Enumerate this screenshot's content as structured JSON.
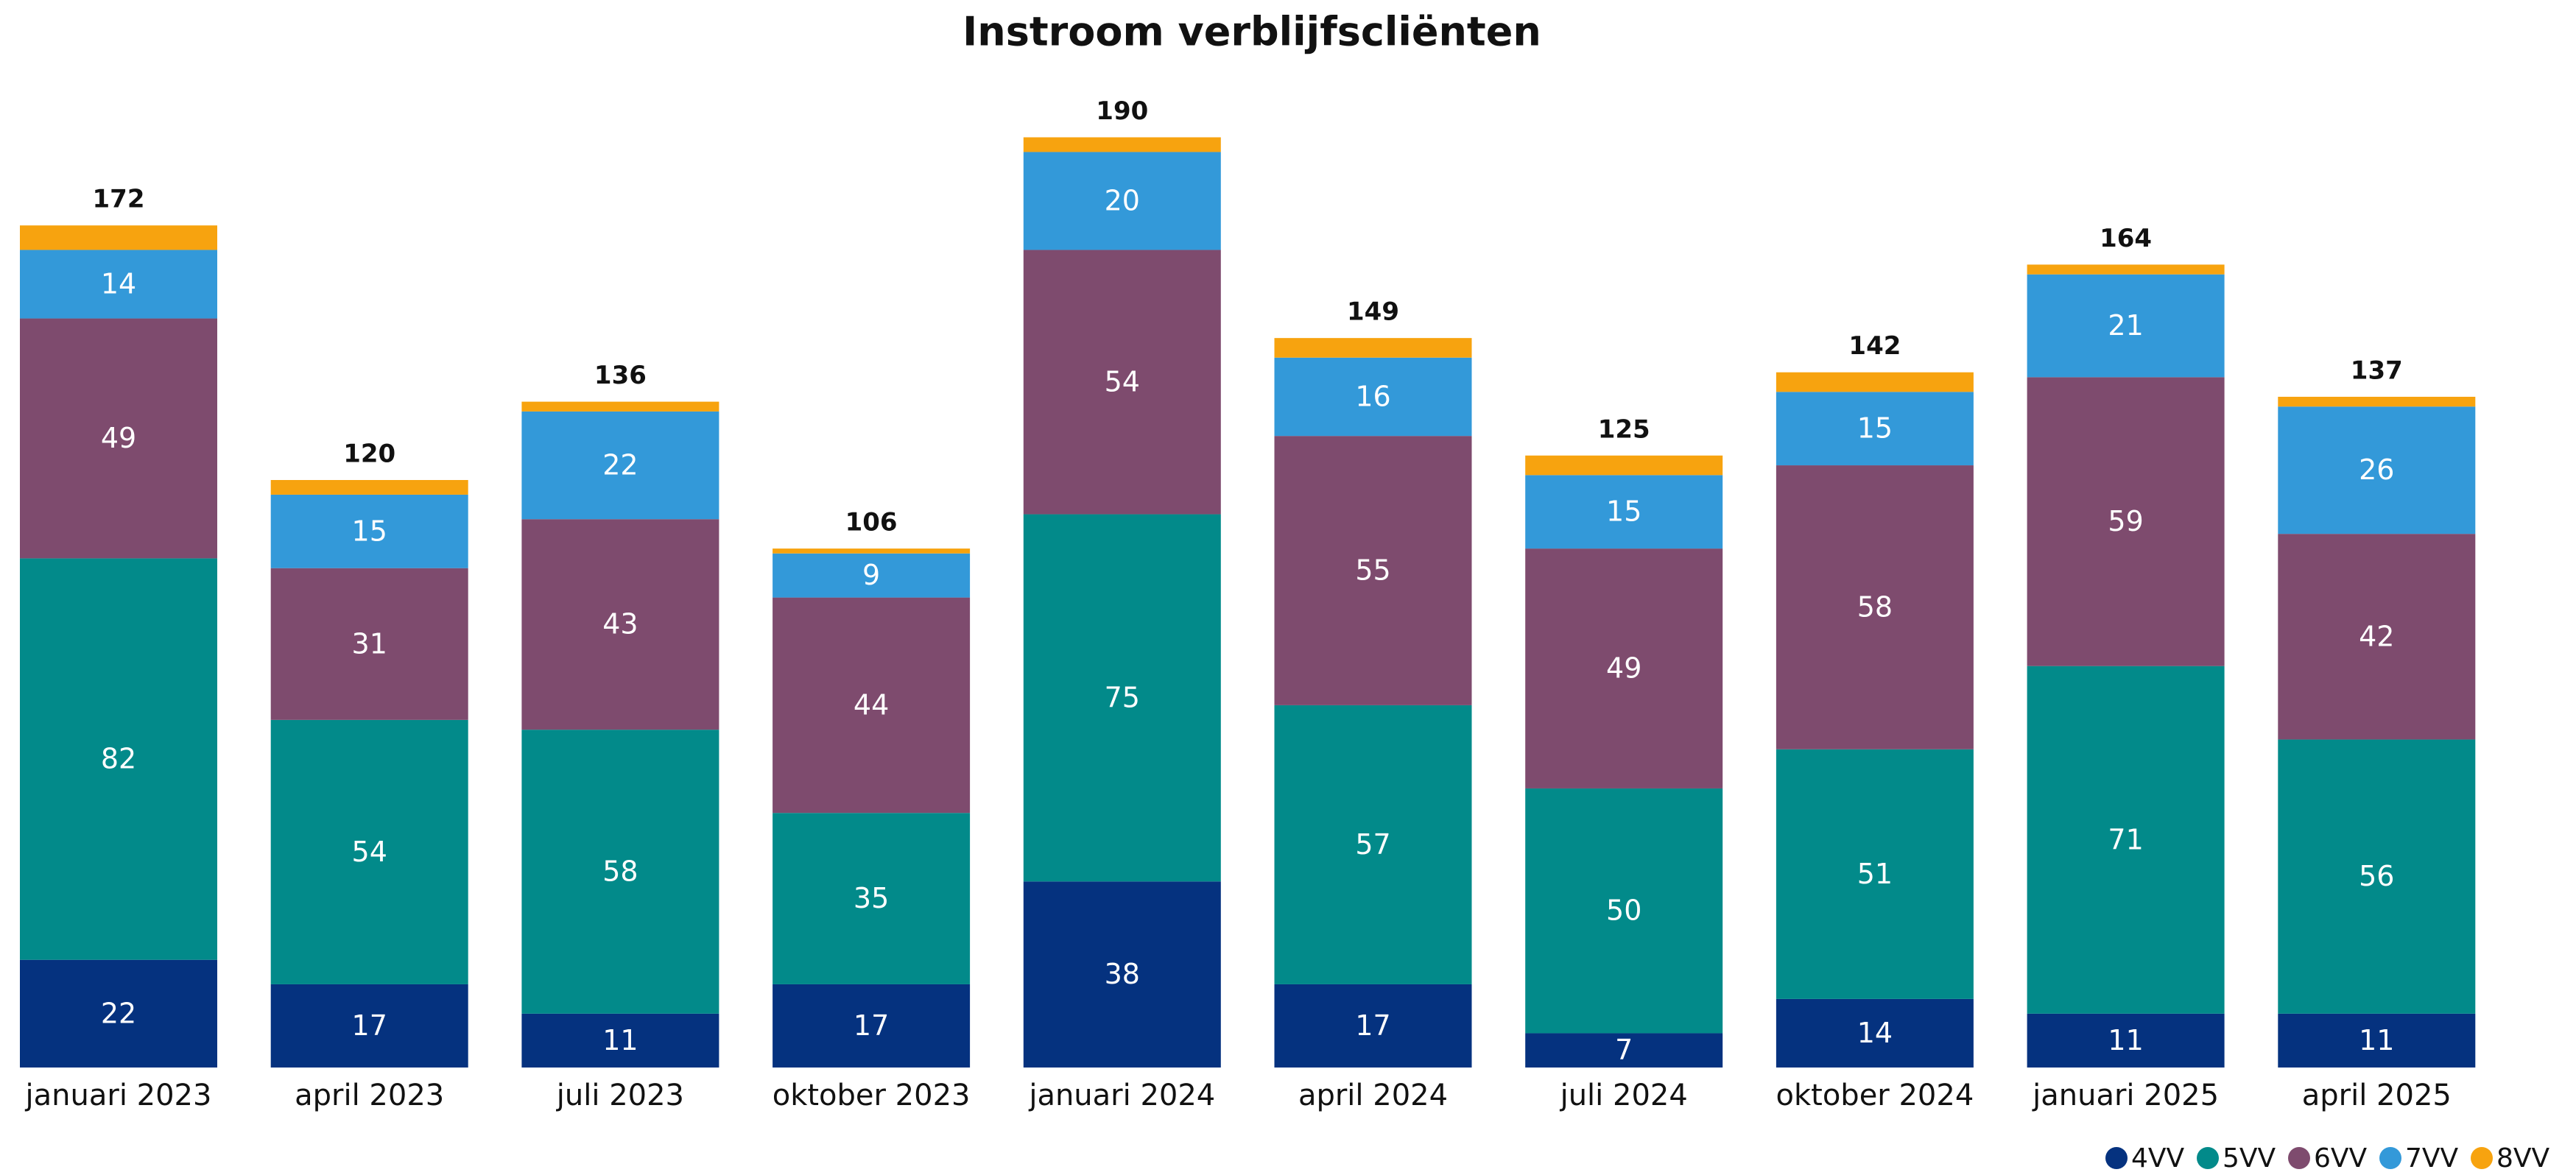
{
  "chart_data": {
    "type": "stacked_bar",
    "title": "Instroom verblijfscliënten",
    "categories": [
      "januari 2023",
      "april 2023",
      "juli 2023",
      "oktober 2023",
      "januari 2024",
      "april 2024",
      "juli 2024",
      "oktober 2024",
      "januari 2025",
      "april 2025"
    ],
    "series": [
      {
        "name": "4VV",
        "color": "#05327f",
        "values": [
          22,
          17,
          11,
          17,
          38,
          17,
          7,
          14,
          11,
          11
        ]
      },
      {
        "name": "5VV",
        "color": "#028a8a",
        "values": [
          82,
          54,
          58,
          35,
          75,
          57,
          50,
          51,
          71,
          56
        ]
      },
      {
        "name": "6VV",
        "color": "#7e4b6e",
        "values": [
          49,
          31,
          43,
          44,
          54,
          55,
          49,
          58,
          59,
          42
        ]
      },
      {
        "name": "7VV",
        "color": "#3399d9",
        "values": [
          14,
          15,
          22,
          9,
          20,
          16,
          15,
          15,
          21,
          26
        ]
      },
      {
        "name": "8VV",
        "color": "#f7a30f",
        "values": [
          5,
          3,
          2,
          1,
          3,
          4,
          4,
          4,
          2,
          2
        ]
      }
    ],
    "totals": [
      172,
      120,
      136,
      106,
      190,
      149,
      125,
      142,
      164,
      137
    ],
    "ylim": [
      0,
      200
    ],
    "legend": "bottom-right"
  }
}
